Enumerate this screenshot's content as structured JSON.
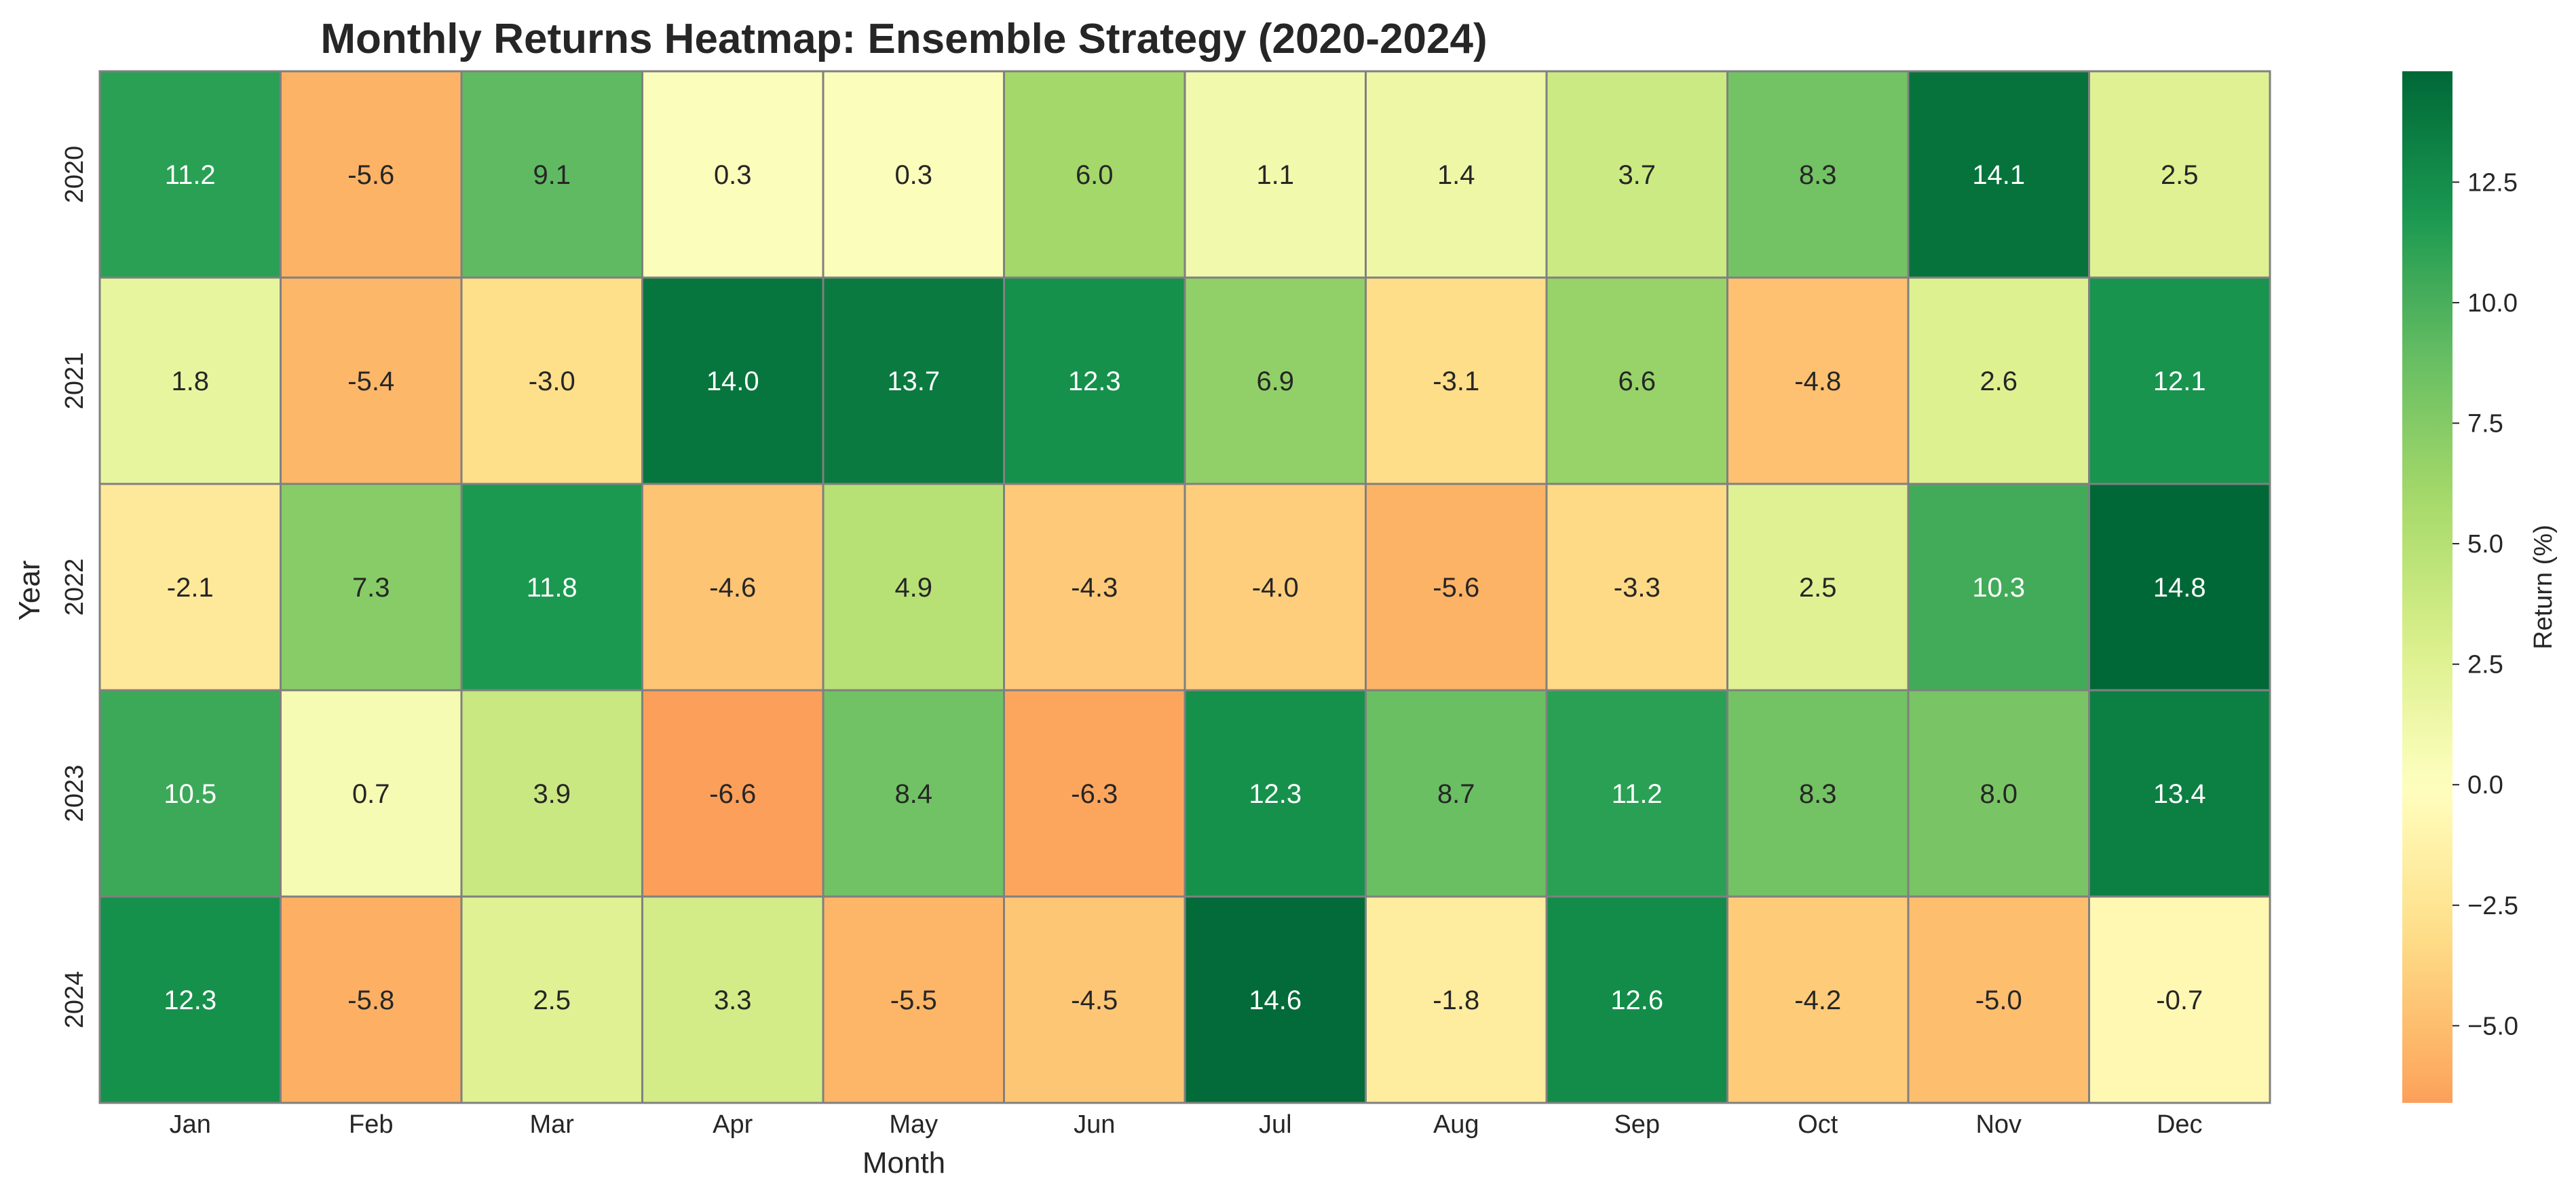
{
  "chart_data": {
    "type": "heatmap",
    "title": "Monthly Returns Heatmap: Ensemble Strategy (2020-2024)",
    "xlabel": "Month",
    "ylabel": "Year",
    "x_categories": [
      "Jan",
      "Feb",
      "Mar",
      "Apr",
      "May",
      "Jun",
      "Jul",
      "Aug",
      "Sep",
      "Oct",
      "Nov",
      "Dec"
    ],
    "y_categories": [
      "2020",
      "2021",
      "2022",
      "2023",
      "2024"
    ],
    "values": [
      [
        11.2,
        -5.6,
        9.1,
        0.3,
        0.3,
        6.0,
        1.1,
        1.4,
        3.7,
        8.3,
        14.1,
        2.5
      ],
      [
        1.8,
        -5.4,
        -3.0,
        14.0,
        13.7,
        12.3,
        6.9,
        -3.1,
        6.6,
        -4.8,
        2.6,
        12.1
      ],
      [
        -2.1,
        7.3,
        11.8,
        -4.6,
        4.9,
        -4.3,
        -4.0,
        -5.6,
        -3.3,
        2.5,
        10.3,
        14.8
      ],
      [
        10.5,
        0.7,
        3.9,
        -6.6,
        8.4,
        -6.3,
        12.3,
        8.7,
        11.2,
        8.3,
        8.0,
        13.4
      ],
      [
        12.3,
        -5.8,
        2.5,
        3.3,
        -5.5,
        -4.5,
        14.6,
        -1.8,
        12.6,
        -4.2,
        -5.0,
        -0.7
      ]
    ],
    "colorbar": {
      "label": "Return (%)",
      "range": [
        -6.6,
        14.8
      ],
      "center": 0,
      "ticks": [
        -5.0,
        -2.5,
        0.0,
        2.5,
        5.0,
        7.5,
        10.0,
        12.5
      ],
      "tick_labels": [
        "−5.0",
        "−2.5",
        "0.0",
        "2.5",
        "5.0",
        "7.5",
        "10.0",
        "12.5"
      ],
      "colormap": "RdYlGn"
    },
    "annotations": true,
    "cell_border_color": "#808080"
  }
}
